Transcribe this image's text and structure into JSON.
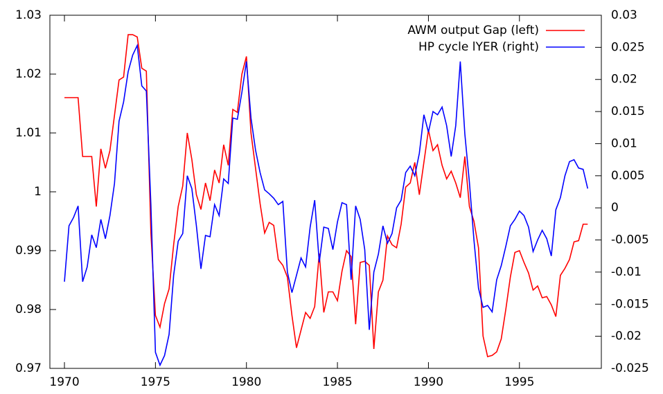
{
  "chart_data": {
    "type": "line",
    "x": [
      1970,
      1970.25,
      1970.5,
      1970.75,
      1971,
      1971.25,
      1971.5,
      1971.75,
      1972,
      1972.25,
      1972.5,
      1972.75,
      1973,
      1973.25,
      1973.5,
      1973.75,
      1974,
      1974.25,
      1974.5,
      1974.75,
      1975,
      1975.25,
      1975.5,
      1975.75,
      1976,
      1976.25,
      1976.5,
      1976.75,
      1977,
      1977.25,
      1977.5,
      1977.75,
      1978,
      1978.25,
      1978.5,
      1978.75,
      1979,
      1979.25,
      1979.5,
      1979.75,
      1980,
      1980.25,
      1980.5,
      1980.75,
      1981,
      1981.25,
      1981.5,
      1981.75,
      1982,
      1982.25,
      1982.5,
      1982.75,
      1983,
      1983.25,
      1983.5,
      1983.75,
      1984,
      1984.25,
      1984.5,
      1984.75,
      1985,
      1985.25,
      1985.5,
      1985.75,
      1986,
      1986.25,
      1986.5,
      1986.75,
      1987,
      1987.25,
      1987.5,
      1987.75,
      1988,
      1988.25,
      1988.5,
      1988.75,
      1989,
      1989.25,
      1989.5,
      1989.75,
      1990,
      1990.25,
      1990.5,
      1990.75,
      1991,
      1991.25,
      1991.5,
      1991.75,
      1992,
      1992.25,
      1992.5,
      1992.75,
      1993,
      1993.25,
      1993.5,
      1993.75,
      1994,
      1994.25,
      1994.5,
      1994.75,
      1995,
      1995.25,
      1995.5,
      1995.75,
      1996,
      1996.25,
      1996.5,
      1996.75,
      1997,
      1997.25,
      1997.5,
      1997.75,
      1998,
      1998.25,
      1998.5,
      1998.75
    ],
    "series": [
      {
        "name": "AWM output Gap  (left)",
        "color": "#ff0000",
        "values": [
          1.016,
          1.016,
          1.016,
          1.016,
          1.006,
          1.006,
          1.006,
          0.9975,
          1.0073,
          1.004,
          1.007,
          1.013,
          1.019,
          1.0195,
          1.0267,
          1.0267,
          1.0263,
          1.021,
          1.0205,
          0.993,
          0.979,
          0.977,
          0.981,
          0.9835,
          0.991,
          0.9975,
          1.001,
          1.01,
          1.0055,
          0.9995,
          0.997,
          1.0015,
          0.9985,
          1.0037,
          1.0015,
          1.008,
          1.0045,
          1.014,
          1.0135,
          1.02,
          1.023,
          1.01,
          1.004,
          0.998,
          0.993,
          0.9948,
          0.9943,
          0.9885,
          0.9875,
          0.9855,
          0.979,
          0.9735,
          0.9765,
          0.9795,
          0.9785,
          0.9805,
          0.9895,
          0.9795,
          0.983,
          0.983,
          0.9815,
          0.9865,
          0.99,
          0.989,
          0.9775,
          0.988,
          0.9882,
          0.9875,
          0.9733,
          0.983,
          0.985,
          0.9925,
          0.991,
          0.9905,
          0.9945,
          1.0008,
          1.0015,
          1.005,
          0.9995,
          1.005,
          1.0105,
          1.007,
          1.008,
          1.0045,
          1.0022,
          1.0035,
          1.0015,
          0.999,
          1.006,
          0.9975,
          0.995,
          0.9905,
          0.9755,
          0.972,
          0.9722,
          0.9728,
          0.975,
          0.98,
          0.9855,
          0.9897,
          0.99,
          0.988,
          0.9862,
          0.9833,
          0.984,
          0.982,
          0.9822,
          0.9808,
          0.9788,
          0.9858,
          0.987,
          0.9885,
          0.9915,
          0.9917,
          0.9945,
          0.9945
        ]
      },
      {
        "name": "HP cycle lYER  (right)",
        "color": "#0000ff",
        "axis": "y2",
        "values": [
          -0.0115,
          -0.0028,
          -0.0015,
          0.0003,
          -0.0115,
          -0.0092,
          -0.0042,
          -0.0062,
          -0.0018,
          -0.0048,
          -0.0012,
          0.0038,
          0.0135,
          0.0165,
          0.0212,
          0.0238,
          0.0253,
          0.019,
          0.0182,
          0.0005,
          -0.0225,
          -0.0245,
          -0.023,
          -0.0197,
          -0.0105,
          -0.0052,
          -0.004,
          0.005,
          0.003,
          -0.0028,
          -0.0095,
          -0.0043,
          -0.0045,
          0.0005,
          -0.0012,
          0.0045,
          0.0038,
          0.014,
          0.0138,
          0.018,
          0.0228,
          0.014,
          0.009,
          0.0055,
          0.0028,
          0.0022,
          0.0015,
          0.0005,
          0.001,
          -0.01,
          -0.0132,
          -0.0105,
          -0.0078,
          -0.0092,
          -0.003,
          0.0012,
          -0.0085,
          -0.003,
          -0.0032,
          -0.0065,
          -0.0022,
          0.0008,
          0.0005,
          -0.0112,
          0.0003,
          -0.0018,
          -0.0065,
          -0.019,
          -0.01,
          -0.0072,
          -0.0028,
          -0.0055,
          -0.004,
          0,
          0.0012,
          0.0055,
          0.0065,
          0.005,
          0.0085,
          0.0145,
          0.0118,
          0.015,
          0.0145,
          0.0157,
          0.0128,
          0.008,
          0.0128,
          0.0228,
          0.0115,
          0.004,
          -0.005,
          -0.0125,
          -0.0155,
          -0.0152,
          -0.0162,
          -0.0112,
          -0.009,
          -0.006,
          -0.0028,
          -0.0018,
          -0.0005,
          -0.0012,
          -0.003,
          -0.0068,
          -0.005,
          -0.0035,
          -0.0048,
          -0.0075,
          -0.0003,
          0.0016,
          0.005,
          0.0072,
          0.0075,
          0.0062,
          0.006,
          0.003
        ]
      }
    ],
    "xlim": [
      1969.2,
      1999.5
    ],
    "xticks": [
      1970,
      1975,
      1980,
      1985,
      1990,
      1995
    ],
    "ylim": [
      0.97,
      1.03
    ],
    "yticks": [
      0.97,
      0.98,
      0.99,
      1,
      1.01,
      1.02,
      1.03
    ],
    "y2lim": [
      -0.025,
      0.03
    ],
    "y2ticks": [
      -0.025,
      -0.02,
      -0.015,
      -0.01,
      -0.005,
      0,
      0.005,
      0.01,
      0.015,
      0.02,
      0.025,
      0.03
    ],
    "legend": "top-right"
  }
}
